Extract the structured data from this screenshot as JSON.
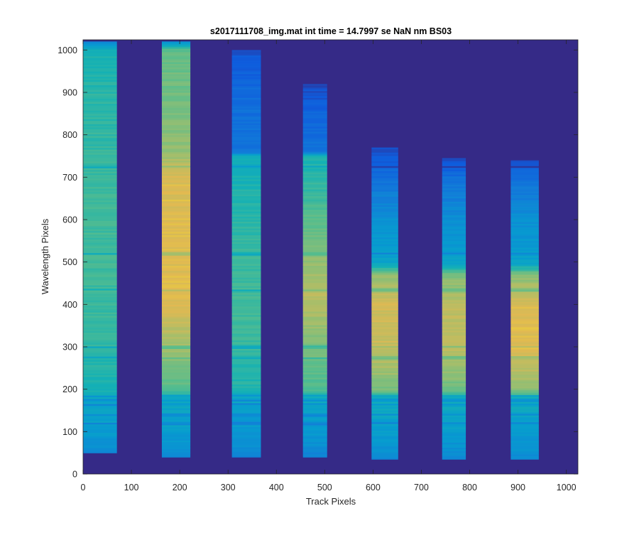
{
  "chart_data": {
    "type": "heatmap",
    "title": "s2017111708_img.mat int time = 14.7997 se  NaN nm BS03",
    "xlabel": "Track Pixels",
    "ylabel": "Wavelength Pixels",
    "xlim": [
      0,
      1024
    ],
    "ylim": [
      0,
      1024
    ],
    "x_ticks": [
      "0",
      "100",
      "200",
      "300",
      "400",
      "500",
      "600",
      "700",
      "800",
      "900",
      "1000"
    ],
    "y_ticks": [
      "0",
      "100",
      "200",
      "300",
      "400",
      "500",
      "600",
      "700",
      "800",
      "900",
      "1000"
    ],
    "colormap": "parula",
    "background_color": "#352a87",
    "grid": false,
    "tracks": [
      {
        "x_start": 0,
        "x_end": 70,
        "y_bottom": 50,
        "y_top": 1020,
        "profile": [
          [
            50,
            0.3
          ],
          [
            100,
            0.38
          ],
          [
            180,
            0.42
          ],
          [
            200,
            0.5
          ],
          [
            300,
            0.55
          ],
          [
            450,
            0.58
          ],
          [
            600,
            0.58
          ],
          [
            750,
            0.56
          ],
          [
            900,
            0.54
          ],
          [
            1000,
            0.5
          ],
          [
            1020,
            0.3
          ]
        ]
      },
      {
        "x_start": 163,
        "x_end": 222,
        "y_bottom": 40,
        "y_top": 1020,
        "profile": [
          [
            40,
            0.3
          ],
          [
            100,
            0.38
          ],
          [
            180,
            0.45
          ],
          [
            200,
            0.62
          ],
          [
            300,
            0.74
          ],
          [
            400,
            0.86
          ],
          [
            550,
            0.88
          ],
          [
            700,
            0.86
          ],
          [
            760,
            0.72
          ],
          [
            850,
            0.68
          ],
          [
            1000,
            0.64
          ],
          [
            1020,
            0.3
          ]
        ]
      },
      {
        "x_start": 308,
        "x_end": 368,
        "y_bottom": 40,
        "y_top": 1000,
        "profile": [
          [
            40,
            0.28
          ],
          [
            100,
            0.36
          ],
          [
            180,
            0.42
          ],
          [
            200,
            0.52
          ],
          [
            350,
            0.58
          ],
          [
            500,
            0.57
          ],
          [
            650,
            0.53
          ],
          [
            750,
            0.46
          ],
          [
            760,
            0.22
          ],
          [
            900,
            0.18
          ],
          [
            1000,
            0.1
          ]
        ]
      },
      {
        "x_start": 455,
        "x_end": 505,
        "y_bottom": 40,
        "y_top": 920,
        "profile": [
          [
            40,
            0.28
          ],
          [
            100,
            0.36
          ],
          [
            180,
            0.44
          ],
          [
            200,
            0.6
          ],
          [
            300,
            0.68
          ],
          [
            420,
            0.8
          ],
          [
            500,
            0.72
          ],
          [
            650,
            0.58
          ],
          [
            750,
            0.5
          ],
          [
            760,
            0.22
          ],
          [
            850,
            0.16
          ],
          [
            920,
            0.08
          ]
        ]
      },
      {
        "x_start": 597,
        "x_end": 652,
        "y_bottom": 35,
        "y_top": 770,
        "profile": [
          [
            35,
            0.3
          ],
          [
            100,
            0.38
          ],
          [
            180,
            0.46
          ],
          [
            200,
            0.68
          ],
          [
            300,
            0.82
          ],
          [
            400,
            0.84
          ],
          [
            470,
            0.72
          ],
          [
            500,
            0.4
          ],
          [
            600,
            0.33
          ],
          [
            700,
            0.2
          ],
          [
            770,
            0.08
          ]
        ]
      },
      {
        "x_start": 743,
        "x_end": 792,
        "y_bottom": 35,
        "y_top": 745,
        "profile": [
          [
            35,
            0.3
          ],
          [
            100,
            0.38
          ],
          [
            180,
            0.46
          ],
          [
            200,
            0.66
          ],
          [
            300,
            0.8
          ],
          [
            400,
            0.8
          ],
          [
            470,
            0.68
          ],
          [
            500,
            0.4
          ],
          [
            600,
            0.32
          ],
          [
            700,
            0.2
          ],
          [
            745,
            0.08
          ]
        ]
      },
      {
        "x_start": 885,
        "x_end": 943,
        "y_bottom": 35,
        "y_top": 740,
        "profile": [
          [
            35,
            0.3
          ],
          [
            100,
            0.38
          ],
          [
            180,
            0.46
          ],
          [
            200,
            0.72
          ],
          [
            300,
            0.88
          ],
          [
            400,
            0.86
          ],
          [
            470,
            0.7
          ],
          [
            500,
            0.4
          ],
          [
            600,
            0.32
          ],
          [
            700,
            0.2
          ],
          [
            740,
            0.08
          ]
        ]
      }
    ]
  }
}
